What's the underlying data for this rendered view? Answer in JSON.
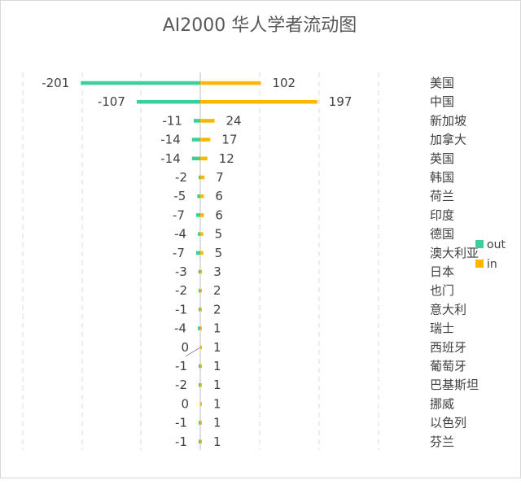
{
  "chart_data": {
    "type": "bar",
    "orientation": "horizontal",
    "title": "AI2000 华人学者流动图",
    "categories": [
      "美国",
      "中国",
      "新加坡",
      "加拿大",
      "英国",
      "韩国",
      "荷兰",
      "印度",
      "德国",
      "澳大利亚",
      "日本",
      "也门",
      "意大利",
      "瑞士",
      "西班牙",
      "葡萄牙",
      "巴基斯坦",
      "挪威",
      "以色列",
      "芬兰"
    ],
    "series": [
      {
        "name": "out",
        "color": "#3ccf9a",
        "values": [
          -201,
          -107,
          -11,
          -14,
          -14,
          -2,
          -5,
          -7,
          -4,
          -7,
          -3,
          -2,
          -1,
          -4,
          0,
          -1,
          -2,
          0,
          -1,
          -1
        ]
      },
      {
        "name": "in",
        "color": "#ffb600",
        "values": [
          102,
          197,
          24,
          17,
          12,
          7,
          6,
          6,
          5,
          5,
          3,
          2,
          2,
          1,
          1,
          1,
          1,
          1,
          1,
          1
        ]
      }
    ],
    "grid": true,
    "legend": "right"
  }
}
